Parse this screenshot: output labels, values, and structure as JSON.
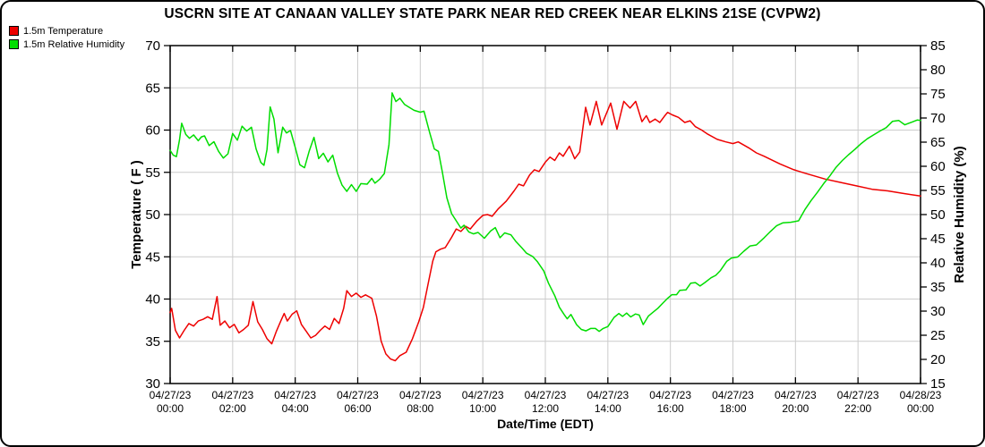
{
  "title": "USCRN SITE AT CANAAN VALLEY STATE PARK NEAR RED CREEK NEAR ELKINS 21SE (CVPW2)",
  "legend": [
    {
      "label": "1.5m Temperature",
      "color": "#ee0000"
    },
    {
      "label": "1.5m Relative Humidity",
      "color": "#00dd00"
    }
  ],
  "colors": {
    "temperature": "#ee0000",
    "humidity": "#00dd00",
    "grid": "#cccccc",
    "axis": "#000000",
    "background": "#ffffff"
  },
  "chart_data": {
    "type": "line",
    "title": "USCRN SITE AT CANAAN VALLEY STATE PARK NEAR RED CREEK NEAR ELKINS 21SE (CVPW2)",
    "xlabel": "Date/Time (EDT)",
    "ylabel_left": "Temperature ( F )",
    "ylabel_right": "Relative Humidity (%)",
    "grid": true,
    "legend_position": "top-left",
    "x_range_hours": [
      0,
      24
    ],
    "x_ticks": [
      {
        "date": "04/27/23",
        "time": "00:00"
      },
      {
        "date": "04/27/23",
        "time": "02:00"
      },
      {
        "date": "04/27/23",
        "time": "04:00"
      },
      {
        "date": "04/27/23",
        "time": "06:00"
      },
      {
        "date": "04/27/23",
        "time": "08:00"
      },
      {
        "date": "04/27/23",
        "time": "10:00"
      },
      {
        "date": "04/27/23",
        "time": "12:00"
      },
      {
        "date": "04/27/23",
        "time": "14:00"
      },
      {
        "date": "04/27/23",
        "time": "16:00"
      },
      {
        "date": "04/27/23",
        "time": "18:00"
      },
      {
        "date": "04/27/23",
        "time": "20:00"
      },
      {
        "date": "04/27/23",
        "time": "22:00"
      },
      {
        "date": "04/28/23",
        "time": "00:00"
      }
    ],
    "ylim_left": [
      30,
      70
    ],
    "ylim_right": [
      15,
      85
    ],
    "y_ticks_left": [
      30,
      35,
      40,
      45,
      50,
      55,
      60,
      65,
      70
    ],
    "y_ticks_right": [
      15,
      20,
      25,
      30,
      35,
      40,
      45,
      50,
      55,
      60,
      65,
      70,
      75,
      80,
      85
    ],
    "series": [
      {
        "name": "1.5m Temperature",
        "color": "#ee0000",
        "axis": "left",
        "unit": "F",
        "points": [
          [
            0.0,
            38.4
          ],
          [
            0.05,
            38.9
          ],
          [
            0.17,
            36.3
          ],
          [
            0.3,
            35.4
          ],
          [
            0.45,
            36.3
          ],
          [
            0.6,
            37.1
          ],
          [
            0.75,
            36.8
          ],
          [
            0.9,
            37.4
          ],
          [
            1.05,
            37.6
          ],
          [
            1.2,
            37.9
          ],
          [
            1.35,
            37.6
          ],
          [
            1.5,
            40.3
          ],
          [
            1.6,
            36.9
          ],
          [
            1.75,
            37.4
          ],
          [
            1.9,
            36.6
          ],
          [
            2.05,
            37.0
          ],
          [
            2.2,
            36.0
          ],
          [
            2.35,
            36.4
          ],
          [
            2.5,
            36.9
          ],
          [
            2.65,
            39.7
          ],
          [
            2.8,
            37.3
          ],
          [
            2.95,
            36.4
          ],
          [
            3.1,
            35.3
          ],
          [
            3.25,
            34.7
          ],
          [
            3.4,
            36.2
          ],
          [
            3.55,
            37.5
          ],
          [
            3.65,
            38.3
          ],
          [
            3.75,
            37.4
          ],
          [
            3.9,
            38.2
          ],
          [
            4.05,
            38.6
          ],
          [
            4.2,
            37.0
          ],
          [
            4.35,
            36.2
          ],
          [
            4.5,
            35.4
          ],
          [
            4.65,
            35.7
          ],
          [
            4.8,
            36.3
          ],
          [
            4.95,
            36.8
          ],
          [
            5.1,
            36.4
          ],
          [
            5.25,
            37.7
          ],
          [
            5.4,
            37.1
          ],
          [
            5.55,
            38.9
          ],
          [
            5.65,
            41.0
          ],
          [
            5.8,
            40.3
          ],
          [
            5.95,
            40.7
          ],
          [
            6.1,
            40.2
          ],
          [
            6.25,
            40.5
          ],
          [
            6.45,
            40.1
          ],
          [
            6.6,
            38.0
          ],
          [
            6.75,
            35.0
          ],
          [
            6.9,
            33.5
          ],
          [
            7.05,
            32.9
          ],
          [
            7.2,
            32.7
          ],
          [
            7.35,
            33.3
          ],
          [
            7.55,
            33.7
          ],
          [
            7.75,
            35.3
          ],
          [
            7.95,
            37.3
          ],
          [
            8.1,
            39.0
          ],
          [
            8.25,
            41.8
          ],
          [
            8.4,
            44.5
          ],
          [
            8.5,
            45.6
          ],
          [
            8.65,
            45.9
          ],
          [
            8.8,
            46.1
          ],
          [
            9.0,
            47.3
          ],
          [
            9.15,
            48.3
          ],
          [
            9.3,
            48.0
          ],
          [
            9.45,
            48.6
          ],
          [
            9.6,
            48.3
          ],
          [
            9.8,
            49.2
          ],
          [
            10.0,
            49.9
          ],
          [
            10.15,
            50.0
          ],
          [
            10.3,
            49.8
          ],
          [
            10.5,
            50.7
          ],
          [
            10.75,
            51.6
          ],
          [
            11.0,
            52.8
          ],
          [
            11.15,
            53.6
          ],
          [
            11.3,
            53.4
          ],
          [
            11.5,
            54.7
          ],
          [
            11.65,
            55.3
          ],
          [
            11.8,
            55.1
          ],
          [
            12.0,
            56.2
          ],
          [
            12.15,
            56.8
          ],
          [
            12.3,
            56.4
          ],
          [
            12.45,
            57.3
          ],
          [
            12.57,
            56.9
          ],
          [
            12.77,
            58.1
          ],
          [
            12.94,
            56.6
          ],
          [
            13.1,
            57.4
          ],
          [
            13.29,
            62.7
          ],
          [
            13.43,
            60.6
          ],
          [
            13.63,
            63.4
          ],
          [
            13.8,
            60.6
          ],
          [
            14.09,
            63.2
          ],
          [
            14.29,
            60.1
          ],
          [
            14.51,
            63.4
          ],
          [
            14.71,
            62.6
          ],
          [
            14.89,
            63.4
          ],
          [
            15.09,
            61.0
          ],
          [
            15.23,
            61.7
          ],
          [
            15.34,
            60.9
          ],
          [
            15.51,
            61.3
          ],
          [
            15.66,
            60.9
          ],
          [
            15.8,
            61.6
          ],
          [
            15.91,
            62.1
          ],
          [
            16.06,
            61.8
          ],
          [
            16.26,
            61.5
          ],
          [
            16.46,
            60.9
          ],
          [
            16.63,
            61.1
          ],
          [
            16.8,
            60.4
          ],
          [
            17.0,
            60.0
          ],
          [
            17.2,
            59.5
          ],
          [
            17.5,
            58.9
          ],
          [
            17.77,
            58.6
          ],
          [
            18.0,
            58.4
          ],
          [
            18.17,
            58.6
          ],
          [
            18.5,
            57.9
          ],
          [
            18.75,
            57.3
          ],
          [
            19.0,
            56.9
          ],
          [
            19.5,
            56.0
          ],
          [
            19.95,
            55.3
          ],
          [
            20.3,
            54.9
          ],
          [
            20.95,
            54.2
          ],
          [
            21.45,
            53.8
          ],
          [
            21.95,
            53.4
          ],
          [
            22.45,
            53.0
          ],
          [
            22.95,
            52.8
          ],
          [
            23.45,
            52.5
          ],
          [
            24.0,
            52.2
          ]
        ]
      },
      {
        "name": "1.5m Relative Humidity",
        "color": "#00dd00",
        "axis": "right",
        "unit": "%",
        "points": [
          [
            0.0,
            63.3
          ],
          [
            0.1,
            62.3
          ],
          [
            0.2,
            62.0
          ],
          [
            0.3,
            65.5
          ],
          [
            0.37,
            68.9
          ],
          [
            0.5,
            66.6
          ],
          [
            0.62,
            65.8
          ],
          [
            0.75,
            66.5
          ],
          [
            0.9,
            65.3
          ],
          [
            1.0,
            66.1
          ],
          [
            1.1,
            66.3
          ],
          [
            1.25,
            64.3
          ],
          [
            1.4,
            65.1
          ],
          [
            1.55,
            63.1
          ],
          [
            1.7,
            61.7
          ],
          [
            1.85,
            62.6
          ],
          [
            2.0,
            66.8
          ],
          [
            2.15,
            65.4
          ],
          [
            2.3,
            68.3
          ],
          [
            2.45,
            67.3
          ],
          [
            2.6,
            68.1
          ],
          [
            2.75,
            63.6
          ],
          [
            2.9,
            60.8
          ],
          [
            3.0,
            60.2
          ],
          [
            3.1,
            63.5
          ],
          [
            3.2,
            72.3
          ],
          [
            3.32,
            69.8
          ],
          [
            3.45,
            62.8
          ],
          [
            3.6,
            68.1
          ],
          [
            3.72,
            66.9
          ],
          [
            3.85,
            67.4
          ],
          [
            4.0,
            63.9
          ],
          [
            4.15,
            60.3
          ],
          [
            4.3,
            59.7
          ],
          [
            4.45,
            63.2
          ],
          [
            4.6,
            66.0
          ],
          [
            4.75,
            61.6
          ],
          [
            4.9,
            62.7
          ],
          [
            5.05,
            60.9
          ],
          [
            5.2,
            62.3
          ],
          [
            5.35,
            58.6
          ],
          [
            5.5,
            56.1
          ],
          [
            5.65,
            54.8
          ],
          [
            5.8,
            56.2
          ],
          [
            5.95,
            54.8
          ],
          [
            6.1,
            56.4
          ],
          [
            6.3,
            56.3
          ],
          [
            6.45,
            57.5
          ],
          [
            6.55,
            56.5
          ],
          [
            6.7,
            57.3
          ],
          [
            6.85,
            58.5
          ],
          [
            7.0,
            64.5
          ],
          [
            7.1,
            75.2
          ],
          [
            7.22,
            73.4
          ],
          [
            7.35,
            74.1
          ],
          [
            7.5,
            72.8
          ],
          [
            7.65,
            72.2
          ],
          [
            7.8,
            71.6
          ],
          [
            8.0,
            71.2
          ],
          [
            8.12,
            71.4
          ],
          [
            8.3,
            67.0
          ],
          [
            8.45,
            63.6
          ],
          [
            8.58,
            63.1
          ],
          [
            8.7,
            59.0
          ],
          [
            8.85,
            53.5
          ],
          [
            9.0,
            50.2
          ],
          [
            9.15,
            48.7
          ],
          [
            9.3,
            47.2
          ],
          [
            9.4,
            47.8
          ],
          [
            9.55,
            46.4
          ],
          [
            9.7,
            46.0
          ],
          [
            9.85,
            46.3
          ],
          [
            10.05,
            45.1
          ],
          [
            10.25,
            46.6
          ],
          [
            10.4,
            47.3
          ],
          [
            10.55,
            45.2
          ],
          [
            10.7,
            46.2
          ],
          [
            10.9,
            45.8
          ],
          [
            11.05,
            44.5
          ],
          [
            11.25,
            43.1
          ],
          [
            11.4,
            42.0
          ],
          [
            11.6,
            41.3
          ],
          [
            11.75,
            40.2
          ],
          [
            11.95,
            38.3
          ],
          [
            12.1,
            35.8
          ],
          [
            12.3,
            33.2
          ],
          [
            12.45,
            30.8
          ],
          [
            12.6,
            29.3
          ],
          [
            12.7,
            28.4
          ],
          [
            12.82,
            29.3
          ],
          [
            13.0,
            27.2
          ],
          [
            13.15,
            26.2
          ],
          [
            13.3,
            25.9
          ],
          [
            13.45,
            26.4
          ],
          [
            13.6,
            26.4
          ],
          [
            13.72,
            25.8
          ],
          [
            13.85,
            26.4
          ],
          [
            14.0,
            26.8
          ],
          [
            14.2,
            28.7
          ],
          [
            14.35,
            29.5
          ],
          [
            14.47,
            28.9
          ],
          [
            14.6,
            29.6
          ],
          [
            14.73,
            28.8
          ],
          [
            14.88,
            29.4
          ],
          [
            15.0,
            29.2
          ],
          [
            15.13,
            27.2
          ],
          [
            15.3,
            29.0
          ],
          [
            15.45,
            29.8
          ],
          [
            15.6,
            30.6
          ],
          [
            15.75,
            31.6
          ],
          [
            15.9,
            32.6
          ],
          [
            16.05,
            33.4
          ],
          [
            16.2,
            33.4
          ],
          [
            16.3,
            34.3
          ],
          [
            16.5,
            34.4
          ],
          [
            16.65,
            35.8
          ],
          [
            16.8,
            35.9
          ],
          [
            16.95,
            35.2
          ],
          [
            17.1,
            35.9
          ],
          [
            17.3,
            36.9
          ],
          [
            17.45,
            37.4
          ],
          [
            17.6,
            38.4
          ],
          [
            17.8,
            40.3
          ],
          [
            17.95,
            41.0
          ],
          [
            18.15,
            41.2
          ],
          [
            18.35,
            42.4
          ],
          [
            18.55,
            43.5
          ],
          [
            18.75,
            43.7
          ],
          [
            19.0,
            45.2
          ],
          [
            19.2,
            46.5
          ],
          [
            19.4,
            47.7
          ],
          [
            19.6,
            48.3
          ],
          [
            19.85,
            48.4
          ],
          [
            20.1,
            48.7
          ],
          [
            20.3,
            51.0
          ],
          [
            20.5,
            52.9
          ],
          [
            20.7,
            54.6
          ],
          [
            20.9,
            56.4
          ],
          [
            21.1,
            58.0
          ],
          [
            21.3,
            59.8
          ],
          [
            21.5,
            61.2
          ],
          [
            21.7,
            62.4
          ],
          [
            21.9,
            63.5
          ],
          [
            22.1,
            64.7
          ],
          [
            22.3,
            65.7
          ],
          [
            22.5,
            66.5
          ],
          [
            22.7,
            67.3
          ],
          [
            22.9,
            68.0
          ],
          [
            23.1,
            69.3
          ],
          [
            23.3,
            69.5
          ],
          [
            23.5,
            68.6
          ],
          [
            23.7,
            69.1
          ],
          [
            23.9,
            69.6
          ],
          [
            24.0,
            69.5
          ]
        ]
      }
    ]
  }
}
